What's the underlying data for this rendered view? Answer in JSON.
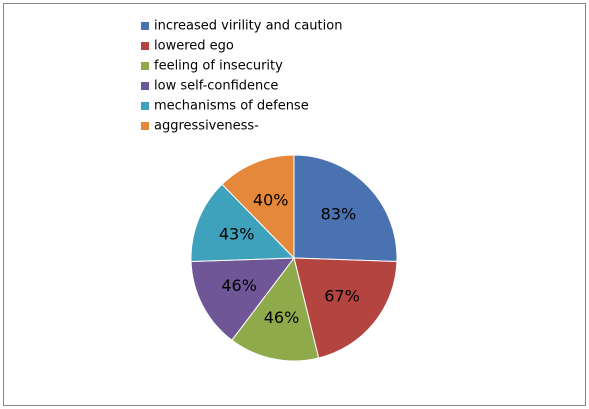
{
  "chart_data": {
    "type": "pie",
    "categories": [
      "increased virility and caution",
      "lowered ego",
      "feeling of insecurity",
      "low self-confidence",
      "mechanisms of defense",
      "aggressiveness-"
    ],
    "values": [
      83,
      67,
      46,
      46,
      43,
      40
    ],
    "value_labels": [
      "83%",
      "67%",
      "46%",
      "46%",
      "43%",
      "40%"
    ],
    "colors": [
      "#4a72b0",
      "#b4443f",
      "#8faa4a",
      "#6f5797",
      "#3ea2bc",
      "#e5883a"
    ],
    "legend": "top-left"
  }
}
